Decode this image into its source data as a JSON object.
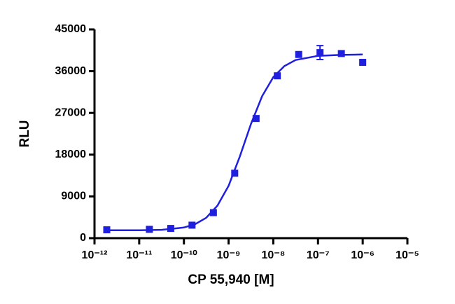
{
  "chart_data": {
    "type": "scatter",
    "x_label": "CP 55,940 [M]",
    "y_label": "RLU",
    "x_scale": "log",
    "color": "#1f1fe0",
    "x": [
      1.88e-12,
      1.69e-11,
      5.08e-11,
      1.52e-10,
      4.57e-10,
      1.37e-09,
      4.12e-09,
      1.23e-08,
      3.7e-08,
      1.11e-07,
      3.33e-07,
      1e-06
    ],
    "values": [
      1800,
      1900,
      2100,
      2800,
      5500,
      14000,
      25800,
      35000,
      39600,
      40000,
      39800,
      37900
    ],
    "errors": [
      null,
      null,
      null,
      null,
      null,
      null,
      null,
      null,
      null,
      1500,
      null,
      null
    ],
    "fit_curve": {
      "x": [
        1.78e-12,
        1e-11,
        3.16e-11,
        1e-10,
        1.78e-10,
        3.16e-10,
        5.62e-10,
        1e-09,
        1.78e-09,
        3.16e-09,
        5.62e-09,
        1e-08,
        1.78e-08,
        3.16e-08,
        1e-07,
        3.16e-07,
        1e-06
      ],
      "values": [
        1700,
        1700,
        1800,
        2300,
        3000,
        4400,
        7000,
        11300,
        17600,
        24600,
        30600,
        34700,
        37100,
        38400,
        39300,
        39500,
        39600
      ]
    },
    "xlim": [
      1e-12,
      1e-05
    ],
    "xticks": [
      {
        "value": 1e-12,
        "label": "10⁻¹²"
      },
      {
        "value": 1e-11,
        "label": "10⁻¹¹"
      },
      {
        "value": 1e-10,
        "label": "10⁻¹⁰"
      },
      {
        "value": 1e-09,
        "label": "10⁻⁹"
      },
      {
        "value": 1e-08,
        "label": "10⁻⁸"
      },
      {
        "value": 1e-07,
        "label": "10⁻⁷"
      },
      {
        "value": 1e-06,
        "label": "10⁻⁶"
      },
      {
        "value": 1e-05,
        "label": "10⁻⁵"
      }
    ],
    "ylim": [
      0,
      45000
    ],
    "yticks": [
      0,
      9000,
      18000,
      27000,
      36000,
      45000
    ]
  }
}
